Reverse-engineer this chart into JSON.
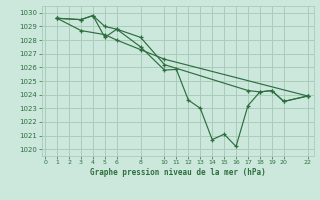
{
  "title": "Graphe pression niveau de la mer (hPa)",
  "background_color": "#cce8dc",
  "grid_color": "#aaccba",
  "line_color": "#2d6e3e",
  "xlim": [
    -0.3,
    22.5
  ],
  "ylim": [
    1019.5,
    1030.5
  ],
  "xticks": [
    0,
    1,
    2,
    3,
    4,
    5,
    6,
    8,
    10,
    11,
    12,
    13,
    14,
    15,
    16,
    17,
    18,
    19,
    20,
    22
  ],
  "yticks": [
    1020,
    1021,
    1022,
    1023,
    1024,
    1025,
    1026,
    1027,
    1028,
    1029,
    1030
  ],
  "line_main_x": [
    1,
    3,
    4,
    5,
    6,
    8,
    10,
    11,
    12,
    13,
    14,
    15,
    16,
    17,
    18,
    19,
    20,
    22
  ],
  "line_main_y": [
    1029.6,
    1029.5,
    1029.8,
    1028.2,
    1028.8,
    1027.5,
    1025.8,
    1025.85,
    1023.6,
    1023.0,
    1020.7,
    1021.1,
    1020.2,
    1023.2,
    1024.2,
    1024.3,
    1023.5,
    1023.9
  ],
  "line_low_x": [
    1,
    3,
    5,
    6,
    8,
    10,
    22
  ],
  "line_low_y": [
    1029.6,
    1028.7,
    1028.4,
    1028.0,
    1027.3,
    1026.6,
    1023.9
  ],
  "line_high_x": [
    1,
    3,
    4,
    5,
    6,
    8,
    10,
    17,
    18,
    19,
    20,
    22
  ],
  "line_high_y": [
    1029.6,
    1029.5,
    1029.8,
    1029.0,
    1028.8,
    1028.2,
    1026.2,
    1024.3,
    1024.2,
    1024.3,
    1023.5,
    1023.9
  ]
}
